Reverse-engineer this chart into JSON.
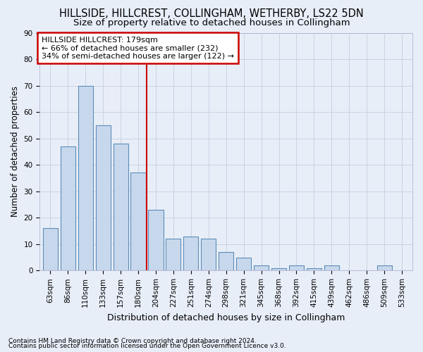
{
  "title": "HILLSIDE, HILLCREST, COLLINGHAM, WETHERBY, LS22 5DN",
  "subtitle": "Size of property relative to detached houses in Collingham",
  "xlabel": "Distribution of detached houses by size in Collingham",
  "ylabel": "Number of detached properties",
  "categories": [
    "63sqm",
    "86sqm",
    "110sqm",
    "133sqm",
    "157sqm",
    "180sqm",
    "204sqm",
    "227sqm",
    "251sqm",
    "274sqm",
    "298sqm",
    "321sqm",
    "345sqm",
    "368sqm",
    "392sqm",
    "415sqm",
    "439sqm",
    "462sqm",
    "486sqm",
    "509sqm",
    "533sqm"
  ],
  "values": [
    16,
    47,
    70,
    55,
    48,
    37,
    23,
    12,
    13,
    12,
    7,
    5,
    2,
    1,
    2,
    1,
    2,
    0,
    0,
    2,
    0
  ],
  "bar_color": "#c8d8ec",
  "bar_edge_color": "#5b8db8",
  "annotation_box_text": "HILLSIDE HILLCREST: 179sqm\n← 66% of detached houses are smaller (232)\n34% of semi-detached houses are larger (122) →",
  "annotation_box_facecolor": "white",
  "annotation_box_edgecolor": "#cc0000",
  "vline_x": 5.5,
  "vline_color": "#cc0000",
  "ylim": [
    0,
    90
  ],
  "yticks": [
    0,
    10,
    20,
    30,
    40,
    50,
    60,
    70,
    80,
    90
  ],
  "grid_color": "#c8d4e4",
  "background_color": "#e8eef8",
  "plot_bg_color": "#e8eef8",
  "footer1": "Contains HM Land Registry data © Crown copyright and database right 2024.",
  "footer2": "Contains public sector information licensed under the Open Government Licence v3.0.",
  "title_fontsize": 10.5,
  "subtitle_fontsize": 9.5,
  "xlabel_fontsize": 9,
  "ylabel_fontsize": 8.5,
  "tick_fontsize": 7.5,
  "annotation_fontsize": 8,
  "footer_fontsize": 6.5
}
